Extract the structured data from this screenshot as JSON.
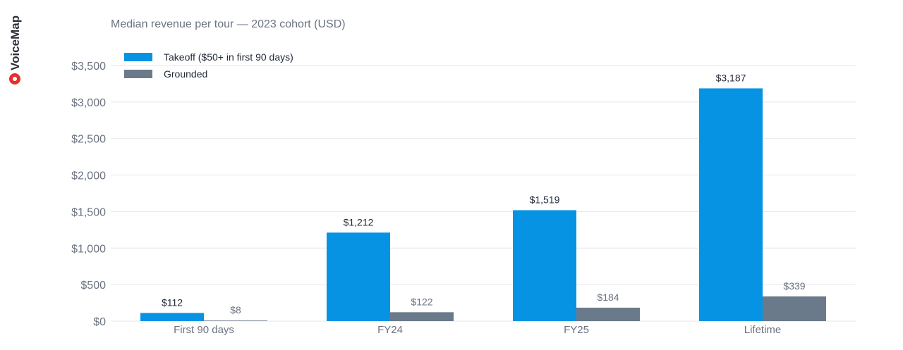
{
  "brand": {
    "logo_text": "VoiceMap",
    "logo_color": "#e3312d",
    "logo_text_color": "#2b2f36"
  },
  "chart_data": {
    "type": "bar",
    "title": "Median revenue per tour — 2023 cohort (USD)",
    "categories": [
      "First 90 days",
      "FY24",
      "FY25",
      "Lifetime"
    ],
    "series": [
      {
        "name": "Takeoff ($50+ in first 90 days)",
        "color": "#0693e3",
        "values": [
          112,
          1212,
          1519,
          3187
        ],
        "labels": [
          "$112",
          "$1,212",
          "$1,519",
          "$3,187"
        ]
      },
      {
        "name": "Grounded",
        "color": "#6b7a8a",
        "values": [
          8,
          122,
          184,
          339
        ],
        "labels": [
          "$8",
          "$122",
          "$184",
          "$339"
        ]
      }
    ],
    "y_ticks": [
      0,
      500,
      1000,
      1500,
      2000,
      2500,
      3000,
      3500
    ],
    "y_tick_labels": [
      "$0",
      "$500",
      "$1,000",
      "$1,500",
      "$2,000",
      "$2,500",
      "$3,000",
      "$3,500"
    ],
    "ylim": [
      0,
      3800
    ],
    "xlabel": "",
    "ylabel": "",
    "grid": true,
    "legend": "top-left"
  }
}
